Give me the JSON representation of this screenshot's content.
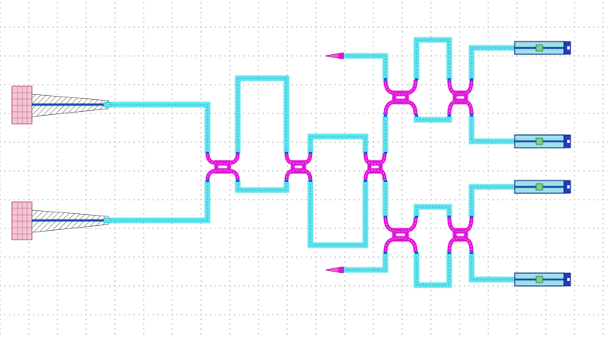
{
  "schematic": {
    "grid_visible": true,
    "colors": {
      "background": "#ffffff",
      "grid_dot": "#8a8a8a",
      "waveguide": "#5fe3ee",
      "splitter": "#e015d8",
      "grating_pad": "#f3c7d6",
      "detector_end": "#1f3fc0",
      "detector_body": "#9fe1ea"
    },
    "components": {
      "inputs": [
        "grating-coupler-top",
        "grating-coupler-bottom"
      ],
      "splitters": [
        "mmi-1",
        "mmi-2",
        "mmi-3",
        "mmi-4",
        "mmi-5",
        "mmi-6",
        "mmi-7"
      ],
      "terminators": [
        "terminator-top",
        "terminator-bottom"
      ],
      "outputs": [
        "detector-1",
        "detector-2",
        "detector-3",
        "detector-4"
      ]
    }
  }
}
